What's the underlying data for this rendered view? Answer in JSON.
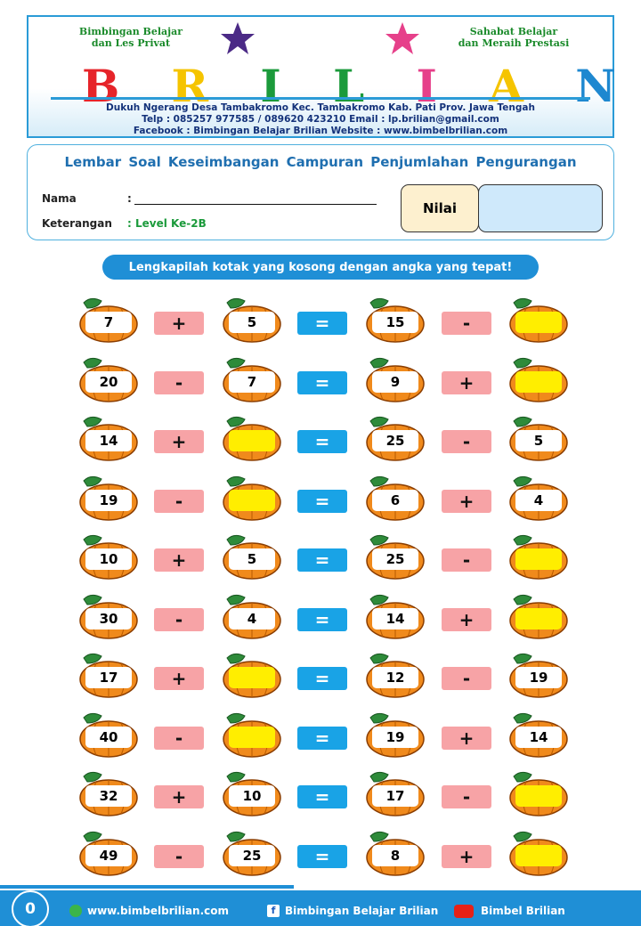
{
  "header": {
    "left_lines": [
      "Bimbingan Belajar",
      "dan Les Privat"
    ],
    "right_lines": [
      "Sahabat Belajar",
      "dan Meraih Prestasi"
    ],
    "logo_letters": [
      "B",
      "R",
      "I",
      "L",
      "I",
      "A",
      "N"
    ],
    "address_lines": [
      "Dukuh Ngerang Desa Tambakromo Kec. Tambakromo Kab. Pati Prov. Jawa Tengah",
      "Telp : 085257 977585 / 089620 423210     Email : lp.brilian@gmail.com",
      "Facebook : Bimbingan Belajar Brilian       Website : www.bimbelbrilian.com"
    ]
  },
  "sheet": {
    "title": "Lembar Soal Keseimbangan Campuran Penjumlahan Pengurangan",
    "name_label": "Nama",
    "colon": ":",
    "info_label": "Keterangan",
    "info_value": ": Level Ke-2B",
    "score_label": "Nilai"
  },
  "instruction": "Lengkapilah kotak yang kosong dengan angka yang tepat!",
  "rows": [
    [
      7,
      "+",
      5,
      "=",
      15,
      "-",
      null
    ],
    [
      20,
      "-",
      7,
      "=",
      9,
      "+",
      null
    ],
    [
      14,
      "+",
      null,
      "=",
      25,
      "-",
      5
    ],
    [
      19,
      "-",
      null,
      "=",
      6,
      "+",
      4
    ],
    [
      10,
      "+",
      5,
      "=",
      25,
      "-",
      null
    ],
    [
      30,
      "-",
      4,
      "=",
      14,
      "+",
      null
    ],
    [
      17,
      "+",
      null,
      "=",
      12,
      "-",
      19
    ],
    [
      40,
      "-",
      null,
      "=",
      19,
      "+",
      14
    ],
    [
      32,
      "+",
      10,
      "=",
      17,
      "-",
      null
    ],
    [
      49,
      "-",
      25,
      "=",
      8,
      "+",
      null
    ]
  ],
  "footer": {
    "page": "0",
    "website": "www.bimbelbrilian.com",
    "facebook": "Bimbingan Belajar Brilian",
    "youtube": "Bimbel Brilian"
  }
}
